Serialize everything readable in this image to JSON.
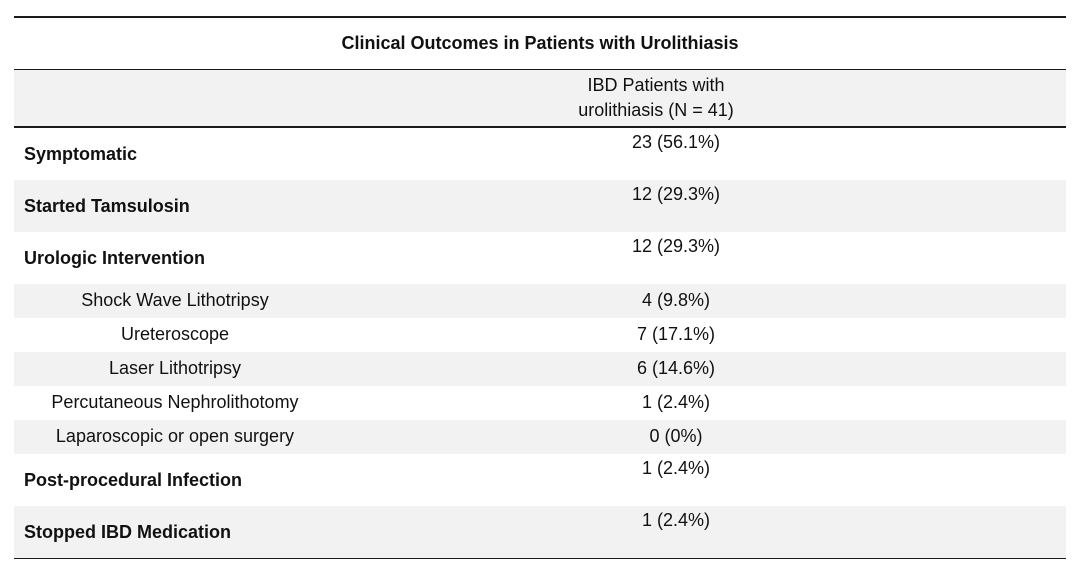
{
  "table": {
    "title": "Clinical Outcomes in Patients with Urolithiasis",
    "header": {
      "col1": "",
      "col2_line1": "IBD Patients with",
      "col2_line2": "urolithiasis (N = 41)"
    },
    "rows": [
      {
        "label": "Symptomatic",
        "value": "23 (56.1%)"
      },
      {
        "label": "Started Tamsulosin",
        "value": "12 (29.3%)"
      },
      {
        "label": "Urologic Intervention",
        "value": "12 (29.3%)"
      },
      {
        "label": "Shock Wave Lithotripsy",
        "value": "4 (9.8%)"
      },
      {
        "label": "Ureteroscope",
        "value": "7 (17.1%)"
      },
      {
        "label": "Laser Lithotripsy",
        "value": "6 (14.6%)"
      },
      {
        "label": "Percutaneous Nephrolithotomy",
        "value": "1 (2.4%)"
      },
      {
        "label": "Laparoscopic or open surgery",
        "value": "0 (0%)"
      },
      {
        "label": "Post-procedural Infection",
        "value": "1 (2.4%)"
      },
      {
        "label": "Stopped IBD Medication",
        "value": "1 (2.4%)"
      }
    ]
  }
}
